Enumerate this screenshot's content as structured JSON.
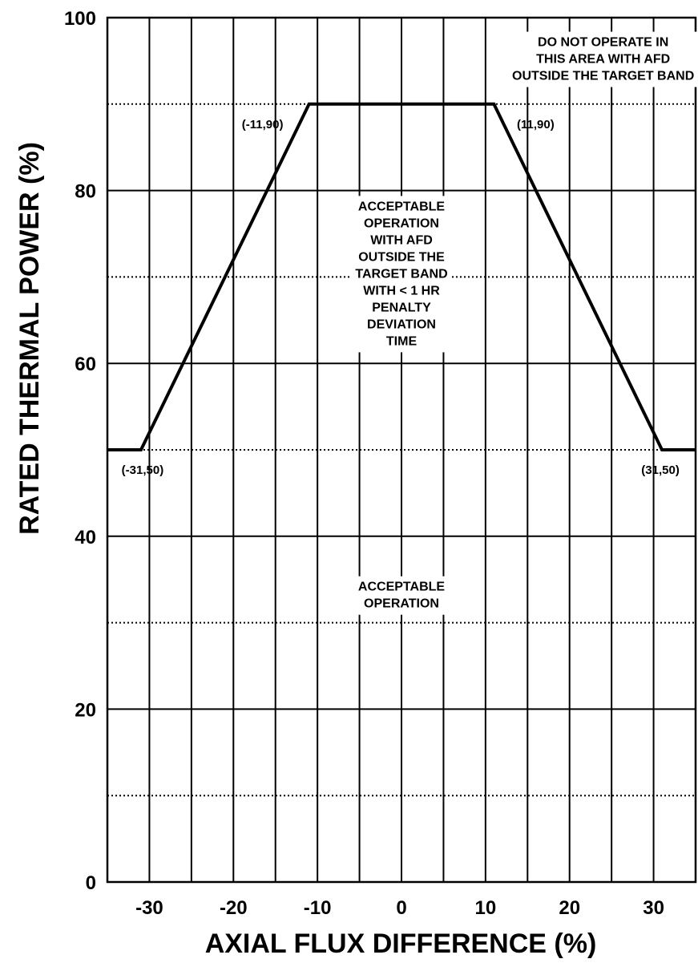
{
  "chart_data": {
    "type": "line",
    "xlabel": "AXIAL FLUX DIFFERENCE (%)",
    "ylabel": "RATED THERMAL POWER (%)",
    "xlim": [
      -35,
      35
    ],
    "ylim": [
      0,
      100
    ],
    "x_major_ticks": [
      -30,
      -20,
      -10,
      0,
      10,
      20,
      30
    ],
    "x_major_tick_labels": [
      "-30",
      "-20",
      "-10",
      "0",
      "10",
      "20",
      "30"
    ],
    "x_minor_gridlines": [
      -25,
      -15,
      -5,
      5,
      15,
      25
    ],
    "y_major_ticks": [
      0,
      20,
      40,
      60,
      80,
      100
    ],
    "y_major_tick_labels": [
      "0",
      "20",
      "40",
      "60",
      "80",
      "100"
    ],
    "y_minor_gridlines": [
      10,
      30,
      50,
      70,
      90
    ],
    "grid": true,
    "series": [
      {
        "x": [
          -35,
          -31,
          -11,
          11,
          31,
          35
        ],
        "y": [
          50,
          50,
          90,
          90,
          50,
          50
        ]
      }
    ],
    "point_labels": [
      {
        "text": "(-11,90)",
        "x": -11,
        "y": 90
      },
      {
        "text": "(11,90)",
        "x": 11,
        "y": 90
      },
      {
        "text": "(-31,50)",
        "x": -31,
        "y": 50
      },
      {
        "text": "(31,50)",
        "x": 31,
        "y": 50
      }
    ],
    "annotations": [
      {
        "lines": [
          "DO NOT OPERATE IN",
          "THIS AREA WITH AFD",
          "OUTSIDE THE TARGET BAND"
        ],
        "x": 24,
        "y": 98
      },
      {
        "lines": [
          "ACCEPTABLE",
          "OPERATION",
          "WITH AFD",
          "OUTSIDE THE",
          "TARGET BAND",
          "WITH < 1 HR",
          "PENALTY",
          "DEVIATION",
          "TIME"
        ],
        "x": 0,
        "y": 79
      },
      {
        "lines": [
          "ACCEPTABLE",
          "OPERATION"
        ],
        "x": 0,
        "y": 35
      }
    ]
  }
}
